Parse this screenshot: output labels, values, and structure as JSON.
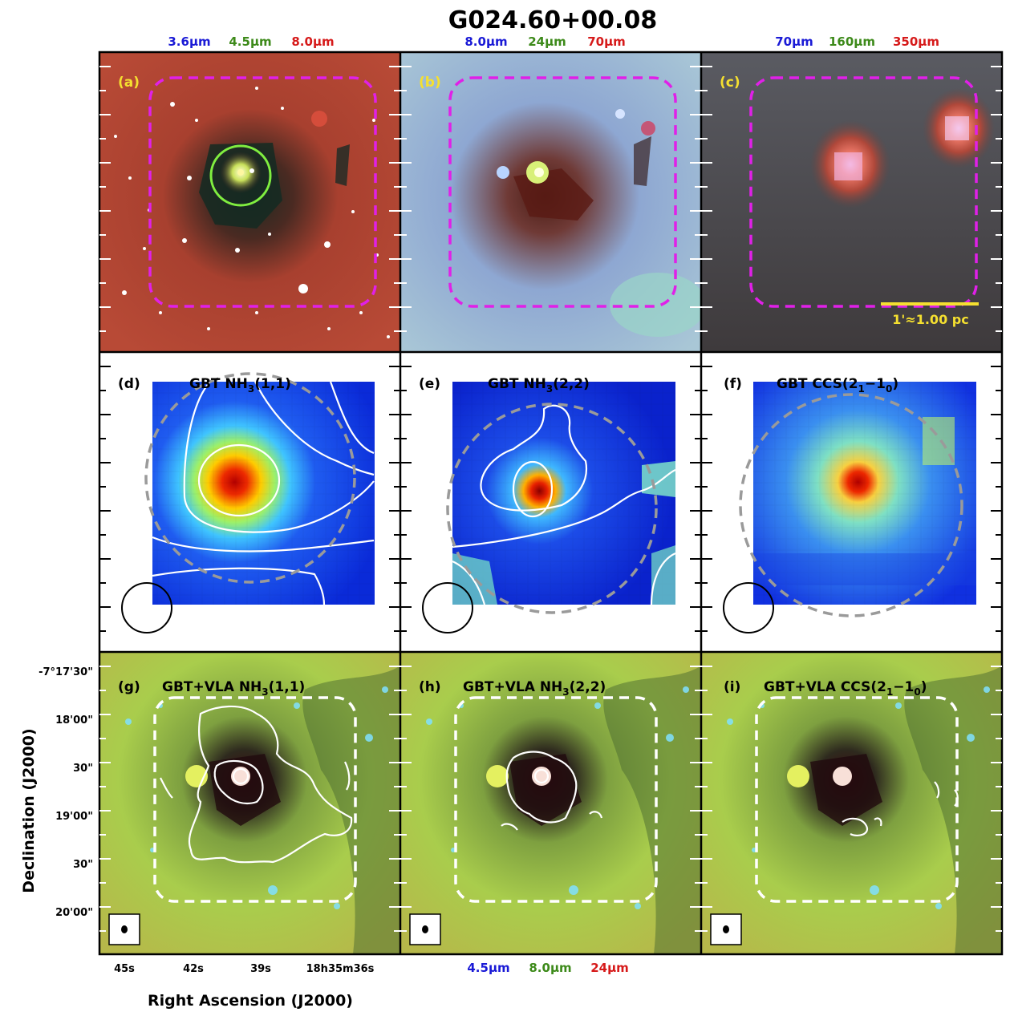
{
  "title": "G024.60+00.08",
  "wavelengths_top": [
    {
      "a": "3.6μm",
      "b": "4.5μm",
      "c": "8.0μm"
    },
    {
      "a": "8.0μm",
      "b": "24μm",
      "c": "70μm"
    },
    {
      "a": "70μm",
      "b": "160μm",
      "c": "350μm"
    }
  ],
  "wavelengths_bottom": {
    "a": "4.5μm",
    "b": "8.0μm",
    "c": "24μm"
  },
  "channel_colors": {
    "blue": "#1a1ad6",
    "green": "#3d8a1a",
    "red": "#d61a1a"
  },
  "panel_labels": [
    "(a)",
    "(b)",
    "(c)",
    "(d)",
    "(e)",
    "(f)",
    "(g)",
    "(h)",
    "(i)"
  ],
  "panel_titles": {
    "d": {
      "pre": "GBT NH",
      "sub": "3",
      "post": "(1,1)"
    },
    "e": {
      "pre": "GBT NH",
      "sub": "3",
      "post": "(2,2)"
    },
    "f": {
      "pre": "GBT CCS(2",
      "sub": "1",
      "mid": "−1",
      "sub2": "0",
      "post": ")"
    },
    "g": {
      "pre": "GBT+VLA NH",
      "sub": "3",
      "post": "(1,1)"
    },
    "h": {
      "pre": "GBT+VLA NH",
      "sub": "3",
      "post": "(2,2)"
    },
    "i": {
      "pre": "GBT+VLA CCS(2",
      "sub": "1",
      "mid": "−1",
      "sub2": "0",
      "post": ")"
    }
  },
  "scale_bar": "1'≈1.00 pc",
  "dec_ticks": [
    "-7°17'30\"",
    "18'00\"",
    "30\"",
    "19'00\"",
    "30\"",
    "20'00\""
  ],
  "ra_ticks": [
    "45s",
    "42s",
    "39s",
    "18h35m36s"
  ],
  "xlabel": "Right Ascension (J2000)",
  "ylabel": "Declination (J2000)"
}
